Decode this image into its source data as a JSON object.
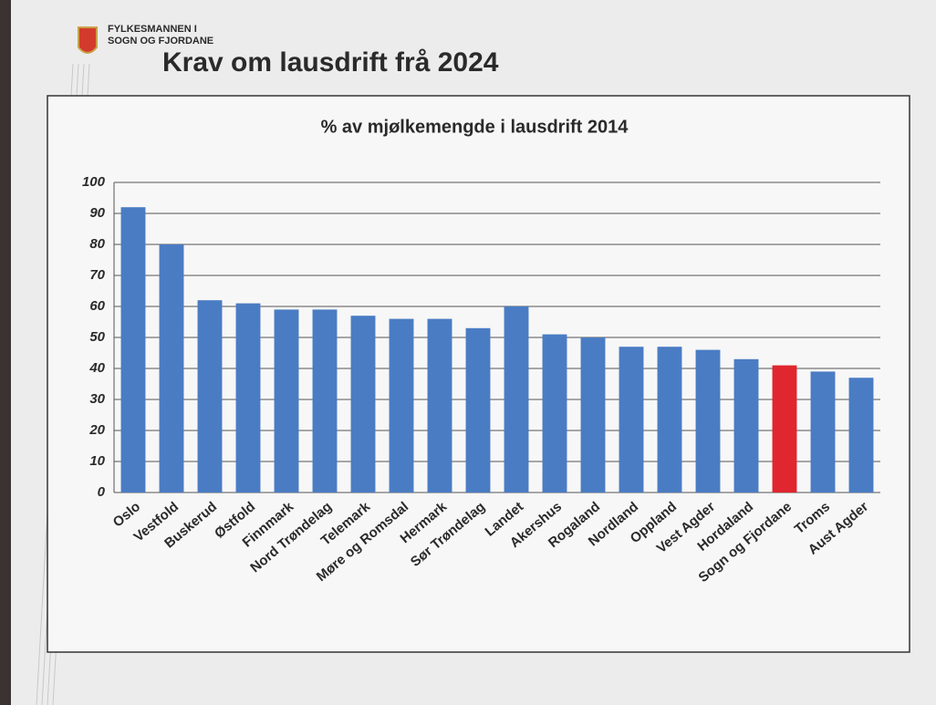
{
  "header": {
    "org_line1": "FYLKESMANNEN I",
    "org_line2": "SOGN OG FJORDANE",
    "title": "Krav om lausdrift frå 2024"
  },
  "chart_data": {
    "type": "bar",
    "title": "% av mjølkemengde i lausdrift 2014",
    "categories": [
      "Oslo",
      "Vestfold",
      "Buskerud",
      "Østfold",
      "Finnmark",
      "Nord Trøndelag",
      "Telemark",
      "Møre og Romsdal",
      "Hermark",
      "Sør Trøndelag",
      "Landet",
      "Akershus",
      "Rogaland",
      "Nordland",
      "Oppland",
      "Vest Agder",
      "Hordaland",
      "Sogn og Fjordane",
      "Troms",
      "Aust Agder"
    ],
    "values": [
      92,
      80,
      62,
      61,
      59,
      59,
      57,
      56,
      56,
      53,
      60,
      51,
      50,
      47,
      47,
      46,
      43,
      41,
      39,
      37
    ],
    "colors": [
      "#4a7cc4",
      "#4a7cc4",
      "#4a7cc4",
      "#4a7cc4",
      "#4a7cc4",
      "#4a7cc4",
      "#4a7cc4",
      "#4a7cc4",
      "#4a7cc4",
      "#4a7cc4",
      "#4a7cc4",
      "#4a7cc4",
      "#4a7cc4",
      "#4a7cc4",
      "#4a7cc4",
      "#4a7cc4",
      "#4a7cc4",
      "#e0262e",
      "#4a7cc4",
      "#4a7cc4"
    ],
    "ylim": [
      0,
      100
    ],
    "yticks": [
      0,
      10,
      20,
      30,
      40,
      50,
      60,
      70,
      80,
      90,
      100
    ],
    "grid": true
  }
}
